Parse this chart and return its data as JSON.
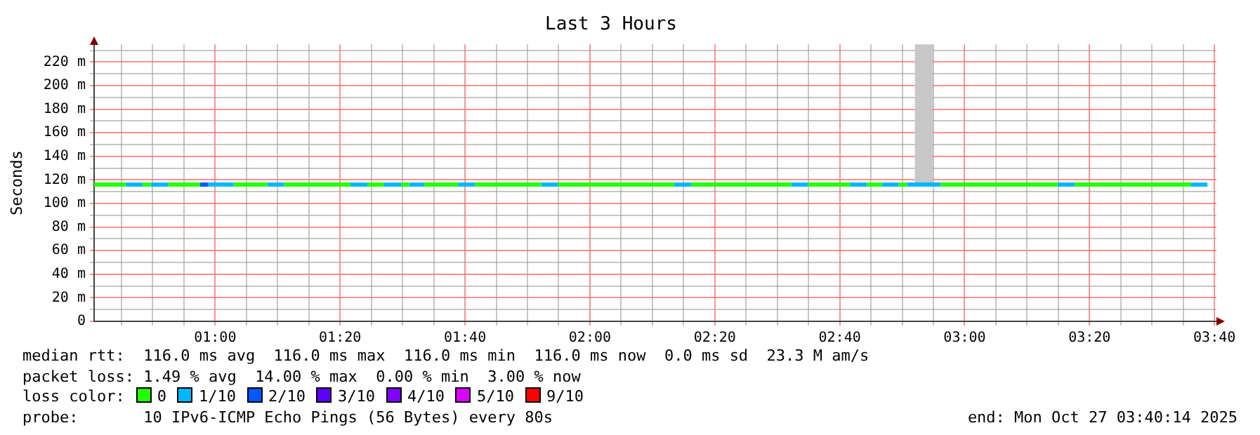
{
  "chart_data": {
    "type": "line",
    "title": "Last 3 Hours",
    "ylabel": "Seconds",
    "legend_title": "loss color:",
    "legend": "bottom",
    "grid": true,
    "marker": "none",
    "xlim": [
      0.677,
      3.672
    ],
    "xticks": [
      {
        "value": 0.75,
        "label": null
      },
      {
        "value": 0.8333,
        "label": null
      },
      {
        "value": 0.9167,
        "label": null
      },
      {
        "value": 1,
        "label": "01:00"
      },
      {
        "value": 1.0833,
        "label": null
      },
      {
        "value": 1.1667,
        "label": null
      },
      {
        "value": 1.25,
        "label": null
      },
      {
        "value": 1.3333,
        "label": "01:20"
      },
      {
        "value": 1.4167,
        "label": null
      },
      {
        "value": 1.5,
        "label": null
      },
      {
        "value": 1.5833,
        "label": null
      },
      {
        "value": 1.6667,
        "label": "01:40"
      },
      {
        "value": 1.75,
        "label": null
      },
      {
        "value": 1.8333,
        "label": null
      },
      {
        "value": 1.9167,
        "label": null
      },
      {
        "value": 2,
        "label": "02:00"
      },
      {
        "value": 2.0833,
        "label": null
      },
      {
        "value": 2.1667,
        "label": null
      },
      {
        "value": 2.25,
        "label": null
      },
      {
        "value": 2.3333,
        "label": "02:20"
      },
      {
        "value": 2.4167,
        "label": null
      },
      {
        "value": 2.5,
        "label": null
      },
      {
        "value": 2.5833,
        "label": null
      },
      {
        "value": 2.6667,
        "label": "02:40"
      },
      {
        "value": 2.75,
        "label": null
      },
      {
        "value": 2.8333,
        "label": null
      },
      {
        "value": 2.9167,
        "label": null
      },
      {
        "value": 3,
        "label": "03:00"
      },
      {
        "value": 3.0833,
        "label": null
      },
      {
        "value": 3.1667,
        "label": null
      },
      {
        "value": 3.25,
        "label": null
      },
      {
        "value": 3.3333,
        "label": "03:20"
      },
      {
        "value": 3.4167,
        "label": null
      },
      {
        "value": 3.5,
        "label": null
      },
      {
        "value": 3.5833,
        "label": null
      },
      {
        "value": 3.6667,
        "label": "03:40"
      }
    ],
    "ylim": [
      0,
      235
    ],
    "yticks": [
      {
        "value": 0,
        "label": "0"
      },
      {
        "value": 10,
        "label": null
      },
      {
        "value": 20,
        "label": "20 m"
      },
      {
        "value": 30,
        "label": null
      },
      {
        "value": 40,
        "label": "40 m"
      },
      {
        "value": 50,
        "label": null
      },
      {
        "value": 60,
        "label": "60 m"
      },
      {
        "value": 70,
        "label": null
      },
      {
        "value": 80,
        "label": "80 m"
      },
      {
        "value": 90,
        "label": null
      },
      {
        "value": 100,
        "label": "100 m"
      },
      {
        "value": 110,
        "label": null
      },
      {
        "value": 120,
        "label": "120 m"
      },
      {
        "value": 130,
        "label": null
      },
      {
        "value": 140,
        "label": "140 m"
      },
      {
        "value": 150,
        "label": null
      },
      {
        "value": 160,
        "label": "160 m"
      },
      {
        "value": 170,
        "label": null
      },
      {
        "value": 180,
        "label": "180 m"
      },
      {
        "value": 190,
        "label": null
      },
      {
        "value": 200,
        "label": "200 m"
      },
      {
        "value": 210,
        "label": null
      },
      {
        "value": 220,
        "label": "220 m"
      },
      {
        "value": 230,
        "label": null
      }
    ],
    "series": [
      {
        "type": "bar",
        "color": "#c8c8c8",
        "x": [
          2.891
        ],
        "base": [
          116
        ],
        "values": [
          119
        ]
      },
      {
        "color": "#26ff00",
        "x": [
          0.677,
          0.761
        ],
        "values": [
          116,
          116
        ]
      },
      {
        "color": "#00b8ff",
        "x": [
          0.761,
          0.806
        ],
        "values": [
          116,
          116
        ]
      },
      {
        "color": "#26ff00",
        "x": [
          0.806,
          0.828
        ],
        "values": [
          116,
          116
        ]
      },
      {
        "color": "#00b8ff",
        "x": [
          0.828,
          0.874
        ],
        "values": [
          116,
          116
        ]
      },
      {
        "color": "#26ff00",
        "x": [
          0.874,
          0.959
        ],
        "values": [
          116,
          116
        ]
      },
      {
        "color": "#0059ff",
        "x": [
          0.959,
          0.981
        ],
        "values": [
          116,
          116
        ]
      },
      {
        "color": "#00b8ff",
        "x": [
          0.981,
          1.049
        ],
        "values": [
          116,
          116
        ]
      },
      {
        "color": "#26ff00",
        "x": [
          1.049,
          1.139
        ],
        "values": [
          116,
          116
        ]
      },
      {
        "color": "#00b8ff",
        "x": [
          1.139,
          1.184
        ],
        "values": [
          116,
          116
        ]
      },
      {
        "color": "#26ff00",
        "x": [
          1.184,
          1.361
        ],
        "values": [
          116,
          116
        ]
      },
      {
        "color": "#00b8ff",
        "x": [
          1.361,
          1.406
        ],
        "values": [
          116,
          116
        ]
      },
      {
        "color": "#26ff00",
        "x": [
          1.406,
          1.451
        ],
        "values": [
          116,
          116
        ]
      },
      {
        "color": "#00b8ff",
        "x": [
          1.451,
          1.496
        ],
        "values": [
          116,
          116
        ]
      },
      {
        "color": "#26ff00",
        "x": [
          1.496,
          1.518
        ],
        "values": [
          116,
          116
        ]
      },
      {
        "color": "#00b8ff",
        "x": [
          1.518,
          1.558
        ],
        "values": [
          116,
          116
        ]
      },
      {
        "color": "#26ff00",
        "x": [
          1.558,
          1.648
        ],
        "values": [
          116,
          116
        ]
      },
      {
        "color": "#00b8ff",
        "x": [
          1.648,
          1.693
        ],
        "values": [
          116,
          116
        ]
      },
      {
        "color": "#26ff00",
        "x": [
          1.693,
          1.87
        ],
        "values": [
          116,
          116
        ]
      },
      {
        "color": "#00b8ff",
        "x": [
          1.87,
          1.915
        ],
        "values": [
          116,
          116
        ]
      },
      {
        "color": "#26ff00",
        "x": [
          1.915,
          2.225
        ],
        "values": [
          116,
          116
        ]
      },
      {
        "color": "#00b8ff",
        "x": [
          2.225,
          2.27
        ],
        "values": [
          116,
          116
        ]
      },
      {
        "color": "#26ff00",
        "x": [
          2.27,
          2.537
        ],
        "values": [
          116,
          116
        ]
      },
      {
        "color": "#00b8ff",
        "x": [
          2.537,
          2.582
        ],
        "values": [
          116,
          116
        ]
      },
      {
        "color": "#26ff00",
        "x": [
          2.582,
          2.694
        ],
        "values": [
          116,
          116
        ]
      },
      {
        "color": "#00b8ff",
        "x": [
          2.694,
          2.739
        ],
        "values": [
          116,
          116
        ]
      },
      {
        "color": "#26ff00",
        "x": [
          2.739,
          2.779
        ],
        "values": [
          116,
          116
        ]
      },
      {
        "color": "#00b8ff",
        "x": [
          2.779,
          2.824
        ],
        "values": [
          116,
          116
        ]
      },
      {
        "color": "#26ff00",
        "x": [
          2.824,
          2.846
        ],
        "values": [
          116,
          116
        ]
      },
      {
        "color": "#00b8ff",
        "x": [
          2.846,
          2.936
        ],
        "values": [
          116,
          116
        ]
      },
      {
        "color": "#26ff00",
        "x": [
          2.936,
          3.248
        ],
        "values": [
          116,
          116
        ]
      },
      {
        "color": "#00b8ff",
        "x": [
          3.248,
          3.293
        ],
        "values": [
          116,
          116
        ]
      },
      {
        "color": "#26ff00",
        "x": [
          3.293,
          3.603
        ],
        "values": [
          116,
          116
        ]
      },
      {
        "color": "#00b8ff",
        "x": [
          3.603,
          3.648
        ],
        "values": [
          116,
          116
        ]
      },
      {
        "name": "0",
        "color": "#26ff00"
      },
      {
        "name": "1/10",
        "color": "#00b8ff"
      },
      {
        "name": "2/10",
        "color": "#0059ff"
      },
      {
        "name": "3/10",
        "color": "#5e00ff"
      },
      {
        "name": "4/10",
        "color": "#7e00ff"
      },
      {
        "name": "5/10",
        "color": "#dd00ff"
      },
      {
        "name": "9/10",
        "color": "#ff0000"
      }
    ],
    "annotations": [
      "median rtt:  116.0 ms avg  116.0 ms max  116.0 ms min  116.0 ms now  0.0 ms sd  23.3 M am/s",
      "packet loss: 1.49 % avg  14.00 % max  0.00 % min  3.00 % now",
      "probe:       10 IPv6-ICMP Echo Pings (56 Bytes) every 80s",
      "end: Mon Oct 27 03:40:14 2025"
    ]
  }
}
